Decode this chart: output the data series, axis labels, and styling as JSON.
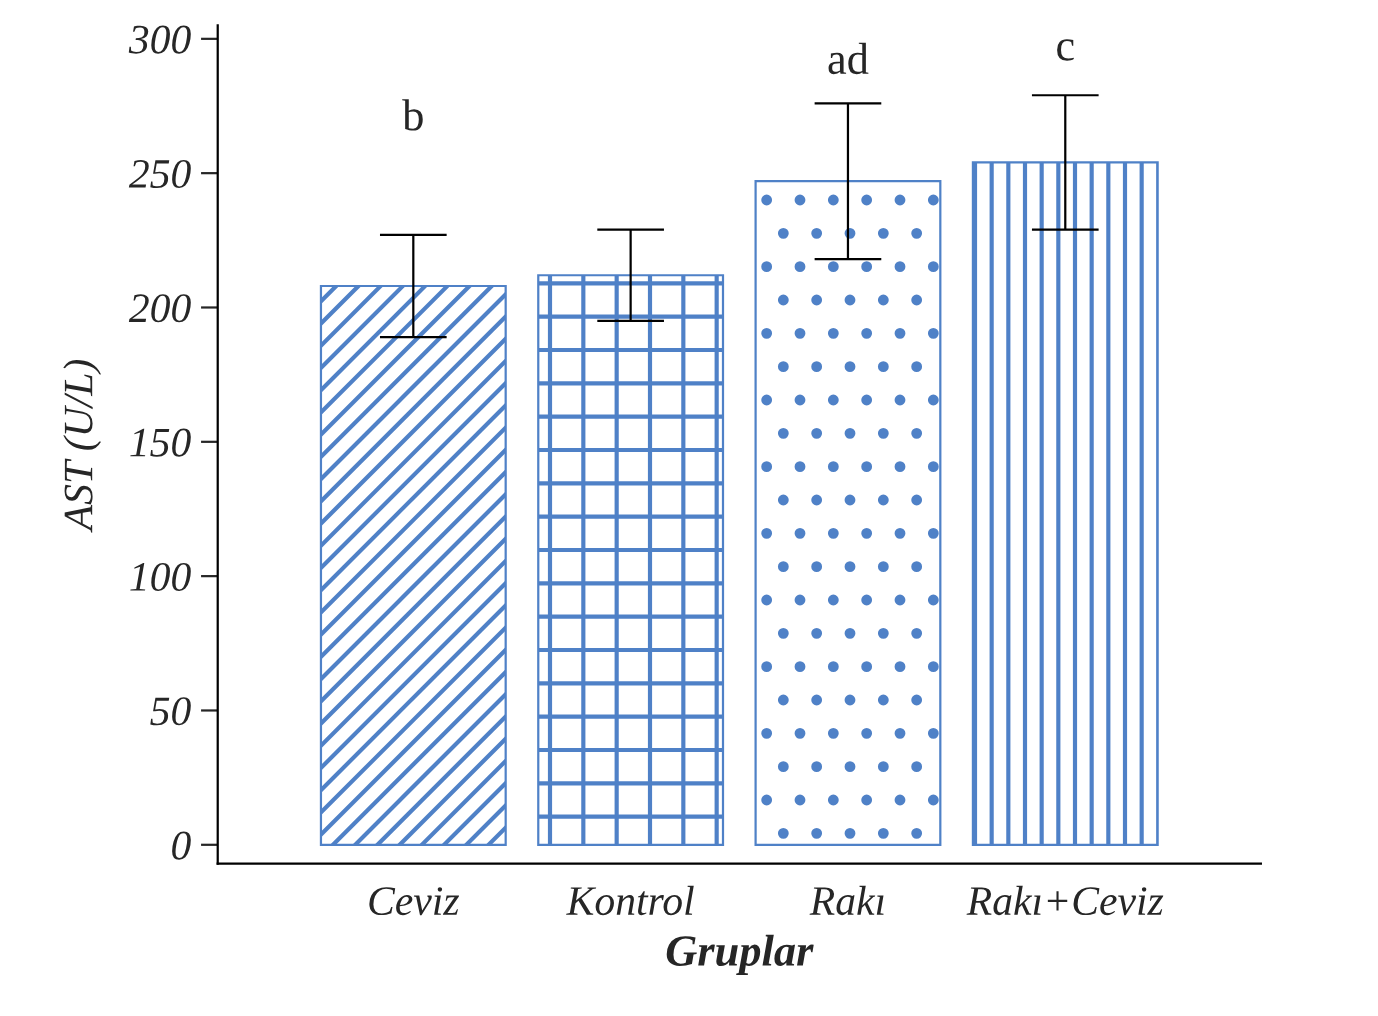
{
  "chart_data": {
    "type": "bar",
    "xlabel": "Gruplar",
    "ylabel": "AST (U/L)",
    "categories": [
      "Ceviz",
      "Kontrol",
      "Rakı",
      "Rakı+Ceviz"
    ],
    "values": [
      208,
      212,
      247,
      254
    ],
    "errors": [
      19,
      17,
      29,
      25
    ],
    "color": "#4f81c7",
    "ylim": [
      -7,
      305
    ],
    "yticks": [
      0,
      50,
      100,
      150,
      200,
      250,
      300
    ],
    "grid": false,
    "annotations": [
      "b",
      "ad",
      "c"
    ]
  }
}
